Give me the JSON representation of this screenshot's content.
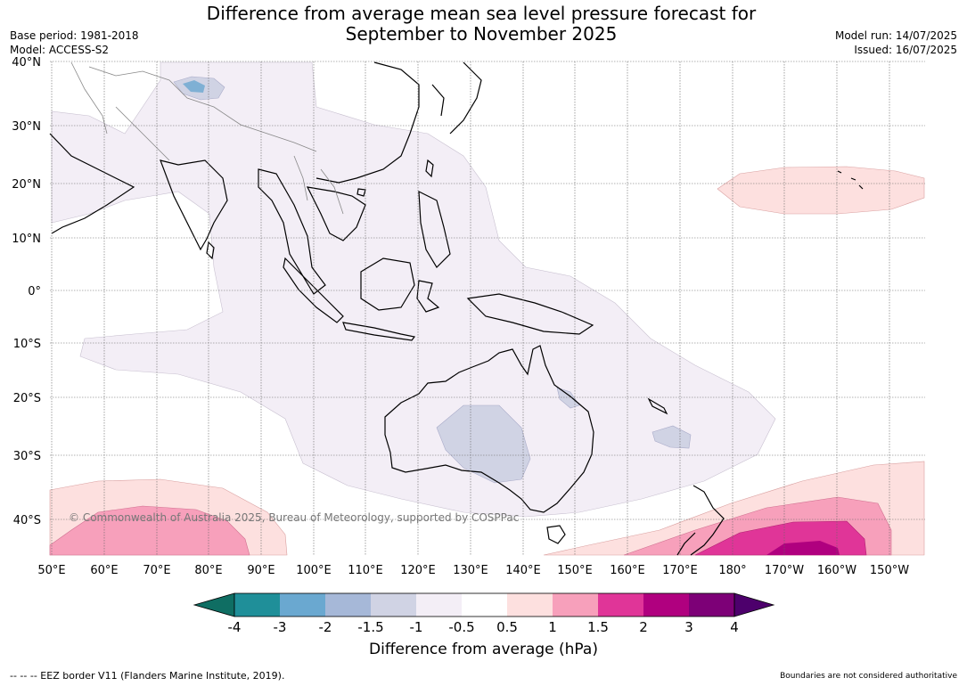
{
  "title": {
    "line1": "Difference from average mean sea level pressure forecast for",
    "line2": "September to November 2025"
  },
  "meta_left": {
    "base_period": "Base period: 1981-2018",
    "model": "Model: ACCESS-S2"
  },
  "meta_right": {
    "model_run": "Model run: 14/07/2025",
    "issued": "Issued: 16/07/2025"
  },
  "copyright": "© Commonwealth of Australia 2025, Bureau of Meteorology, supported by COSPPac",
  "lat_labels": [
    "40°N",
    "30°N",
    "20°N",
    "10°N",
    "0°",
    "10°S",
    "20°S",
    "30°S",
    "40°S"
  ],
  "lon_labels": [
    "50°E",
    "60°E",
    "70°E",
    "80°E",
    "90°E",
    "100°E",
    "110°E",
    "120°E",
    "130°E",
    "140°E",
    "150°E",
    "160°E",
    "170°E",
    "180°",
    "170°W",
    "160°W",
    "150°W"
  ],
  "colorbar": {
    "title": "Difference from average (hPa)",
    "tick_labels": [
      "-4",
      "-3",
      "-2",
      "-1.5",
      "-1",
      "-0.5",
      "0.5",
      "1",
      "1.5",
      "2",
      "3",
      "4"
    ],
    "colors": [
      "#0f6e63",
      "#1f8f99",
      "#6aa8d0",
      "#a6b8d8",
      "#d0d3e4",
      "#f3eef6",
      "#ffffff",
      "#fde0df",
      "#f7a0bb",
      "#e03598",
      "#b0007f",
      "#7d0077",
      "#4d006c"
    ]
  },
  "footer_left": "--  --  -- EEZ border V11 (Flanders Marine Institute, 2019).",
  "footer_right": "Boundaries are not considered authoritative"
}
